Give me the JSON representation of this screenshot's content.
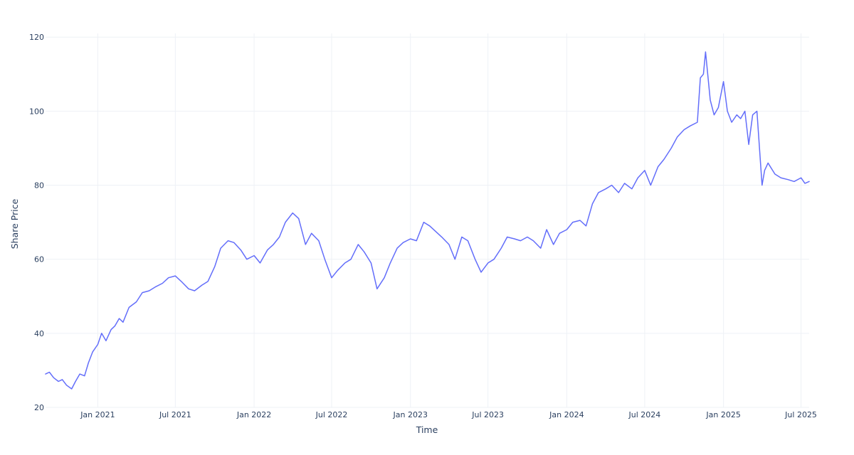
{
  "chart_data": {
    "type": "line",
    "title": "",
    "xlabel": "Time",
    "ylabel": "Share Price",
    "ylim": [
      20,
      121
    ],
    "xlim": [
      "2020-09-01",
      "2025-07-20"
    ],
    "y_ticks": [
      20,
      40,
      60,
      80,
      100,
      120
    ],
    "x_ticks": [
      {
        "date": "2021-01-01",
        "label": "Jan 2021"
      },
      {
        "date": "2021-07-01",
        "label": "Jul 2021"
      },
      {
        "date": "2022-01-01",
        "label": "Jan 2022"
      },
      {
        "date": "2022-07-01",
        "label": "Jul 2022"
      },
      {
        "date": "2023-01-01",
        "label": "Jan 2023"
      },
      {
        "date": "2023-07-01",
        "label": "Jul 2023"
      },
      {
        "date": "2024-01-01",
        "label": "Jan 2024"
      },
      {
        "date": "2024-07-01",
        "label": "Jul 2024"
      },
      {
        "date": "2025-01-01",
        "label": "Jan 2025"
      },
      {
        "date": "2025-07-01",
        "label": "Jul 2025"
      }
    ],
    "grid": true,
    "legend": "none",
    "series": [
      {
        "color": "#636efa",
        "x": [
          "2020-09-01",
          "2020-09-10",
          "2020-09-20",
          "2020-10-01",
          "2020-10-10",
          "2020-10-20",
          "2020-11-01",
          "2020-11-10",
          "2020-11-20",
          "2020-12-01",
          "2020-12-10",
          "2020-12-20",
          "2021-01-01",
          "2021-01-10",
          "2021-01-20",
          "2021-02-01",
          "2021-02-10",
          "2021-02-20",
          "2021-03-01",
          "2021-03-15",
          "2021-04-01",
          "2021-04-15",
          "2021-05-01",
          "2021-05-15",
          "2021-06-01",
          "2021-06-15",
          "2021-07-01",
          "2021-07-15",
          "2021-08-01",
          "2021-08-15",
          "2021-09-01",
          "2021-09-15",
          "2021-10-01",
          "2021-10-15",
          "2021-11-01",
          "2021-11-15",
          "2021-12-01",
          "2021-12-15",
          "2022-01-01",
          "2022-01-15",
          "2022-02-01",
          "2022-02-15",
          "2022-03-01",
          "2022-03-15",
          "2022-04-01",
          "2022-04-15",
          "2022-05-01",
          "2022-05-15",
          "2022-06-01",
          "2022-06-15",
          "2022-07-01",
          "2022-07-15",
          "2022-08-01",
          "2022-08-15",
          "2022-09-01",
          "2022-09-15",
          "2022-10-01",
          "2022-10-15",
          "2022-11-01",
          "2022-11-15",
          "2022-12-01",
          "2022-12-15",
          "2023-01-01",
          "2023-01-15",
          "2023-02-01",
          "2023-02-15",
          "2023-03-01",
          "2023-03-15",
          "2023-04-01",
          "2023-04-15",
          "2023-05-01",
          "2023-05-15",
          "2023-06-01",
          "2023-06-15",
          "2023-07-01",
          "2023-07-15",
          "2023-08-01",
          "2023-08-15",
          "2023-09-01",
          "2023-09-15",
          "2023-10-01",
          "2023-10-15",
          "2023-11-01",
          "2023-11-15",
          "2023-12-01",
          "2023-12-15",
          "2024-01-01",
          "2024-01-15",
          "2024-02-01",
          "2024-02-15",
          "2024-03-01",
          "2024-03-15",
          "2024-04-01",
          "2024-04-15",
          "2024-05-01",
          "2024-05-15",
          "2024-06-01",
          "2024-06-15",
          "2024-07-01",
          "2024-07-15",
          "2024-08-01",
          "2024-08-15",
          "2024-09-01",
          "2024-09-15",
          "2024-10-01",
          "2024-10-15",
          "2024-11-01",
          "2024-11-08",
          "2024-11-15",
          "2024-11-20",
          "2024-12-01",
          "2024-12-10",
          "2024-12-20",
          "2025-01-01",
          "2025-01-10",
          "2025-01-20",
          "2025-02-01",
          "2025-02-10",
          "2025-02-20",
          "2025-03-01",
          "2025-03-10",
          "2025-03-20",
          "2025-04-01",
          "2025-04-07",
          "2025-04-15",
          "2025-05-01",
          "2025-05-15",
          "2025-06-01",
          "2025-06-15",
          "2025-07-01",
          "2025-07-10",
          "2025-07-20"
        ],
        "y": [
          29,
          29.5,
          28,
          27,
          27.5,
          26,
          25,
          27,
          29,
          28.5,
          32,
          35,
          37,
          40,
          38,
          41,
          42,
          44,
          43,
          47,
          48.5,
          51,
          51.5,
          52.5,
          53.5,
          55,
          55.5,
          54,
          52,
          51.5,
          53,
          54,
          58,
          63,
          65,
          64.5,
          62.5,
          60,
          61,
          59,
          62.5,
          64,
          66,
          70,
          72.5,
          71,
          64,
          67,
          65,
          60,
          55,
          57,
          59,
          60,
          64,
          62,
          59,
          52,
          55,
          59,
          63,
          64.5,
          65.5,
          65,
          70,
          69,
          67.5,
          66,
          64,
          60,
          66,
          65,
          60,
          56.5,
          59,
          60,
          63,
          66,
          65.5,
          65,
          66,
          65,
          63,
          68,
          64,
          67,
          68,
          70,
          70.5,
          69,
          75,
          78,
          79,
          80,
          78,
          80.5,
          79,
          82,
          84,
          80,
          85,
          87,
          90,
          93,
          95,
          96,
          97,
          109,
          110,
          116,
          103,
          99,
          101,
          108,
          100,
          97,
          99,
          98,
          100,
          91,
          99,
          100,
          80,
          84,
          86,
          83,
          82,
          81.5,
          81,
          82,
          80.5,
          81
        ]
      }
    ]
  }
}
